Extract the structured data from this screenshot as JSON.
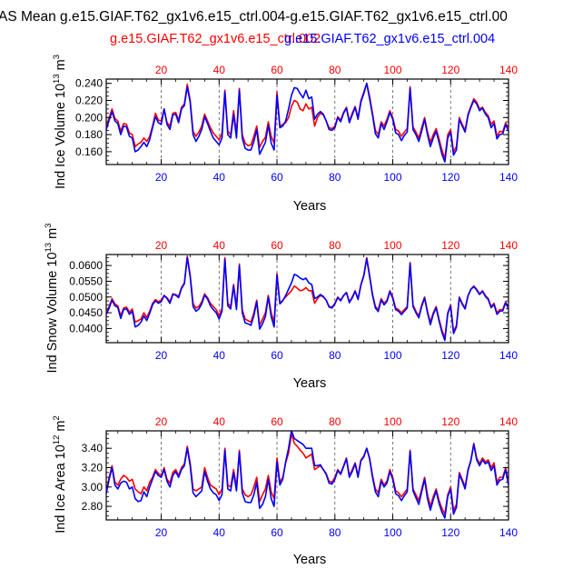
{
  "title": "AS Mean g.e15.GIAF.T62_gx1v6.e15_ctrl.004-g.e15.GIAF.T62_gx1v6.e15_ctrl.00",
  "legend": {
    "series1": "g.e15.GIAF.T62_gx1v6.e15_ctrl.002",
    "series2": "g.e15.GIAF.T62_gx1v6.e15_ctrl.004"
  },
  "colors": {
    "series1": "#ff0000",
    "series2": "#0000ff",
    "grid": "#555555"
  },
  "chart_data": [
    {
      "type": "line",
      "ylabel_text": "Ind Ice Volume 10",
      "ylabel_exp": "13",
      "ylabel_unit": "m",
      "ylabel_unit_exp": "3",
      "xlabel": "Years",
      "xlim": [
        1,
        140
      ],
      "ylim": [
        0.145,
        0.245
      ],
      "yticks": [
        "0.160",
        "0.180",
        "0.200",
        "0.220",
        "0.240"
      ],
      "xticks": [
        "20",
        "40",
        "60",
        "80",
        "100",
        "120",
        "140"
      ],
      "series": [
        {
          "name": "g.e15.GIAF.T62_gx1v6.e15_ctrl.002",
          "color": "#ff0000",
          "values": [
            0.188,
            0.2,
            0.21,
            0.199,
            0.196,
            0.184,
            0.193,
            0.192,
            0.182,
            0.18,
            0.166,
            0.169,
            0.171,
            0.176,
            0.172,
            0.178,
            0.19,
            0.205,
            0.197,
            0.196,
            0.21,
            0.194,
            0.19,
            0.205,
            0.206,
            0.197,
            0.212,
            0.216,
            0.239,
            0.22,
            0.184,
            0.178,
            0.183,
            0.19,
            0.204,
            0.196,
            0.188,
            0.182,
            0.178,
            0.174,
            0.182,
            0.232,
            0.184,
            0.18,
            0.208,
            0.182,
            0.234,
            0.18,
            0.17,
            0.167,
            0.168,
            0.178,
            0.19,
            0.165,
            0.172,
            0.177,
            0.195,
            0.178,
            0.17,
            0.23,
            0.19,
            0.192,
            0.194,
            0.2,
            0.213,
            0.22,
            0.218,
            0.21,
            0.208,
            0.216,
            0.21,
            0.212,
            0.19,
            0.2,
            0.205,
            0.203,
            0.196,
            0.188,
            0.187,
            0.19,
            0.201,
            0.197,
            0.206,
            0.212,
            0.196,
            0.205,
            0.213,
            0.2,
            0.22,
            0.23,
            0.24,
            0.225,
            0.205,
            0.185,
            0.18,
            0.195,
            0.19,
            0.198,
            0.208,
            0.2,
            0.186,
            0.184,
            0.178,
            0.183,
            0.187,
            0.236,
            0.189,
            0.183,
            0.176,
            0.188,
            0.2,
            0.183,
            0.171,
            0.18,
            0.187,
            0.175,
            0.162,
            0.152,
            0.18,
            0.186,
            0.16,
            0.166,
            0.2,
            0.192,
            0.185,
            0.204,
            0.213,
            0.222,
            0.218,
            0.21,
            0.212,
            0.206,
            0.202,
            0.192,
            0.196,
            0.178,
            0.184,
            0.183,
            0.194,
            0.186
          ]
        },
        {
          "name": "g.e15.GIAF.T62_gx1v6.e15_ctrl.004",
          "color": "#0000ff",
          "values": [
            0.186,
            0.197,
            0.207,
            0.196,
            0.193,
            0.18,
            0.19,
            0.189,
            0.178,
            0.176,
            0.16,
            0.162,
            0.166,
            0.171,
            0.166,
            0.174,
            0.188,
            0.201,
            0.194,
            0.192,
            0.21,
            0.192,
            0.186,
            0.203,
            0.204,
            0.194,
            0.21,
            0.214,
            0.236,
            0.218,
            0.18,
            0.172,
            0.178,
            0.186,
            0.201,
            0.193,
            0.184,
            0.176,
            0.172,
            0.168,
            0.176,
            0.23,
            0.18,
            0.176,
            0.204,
            0.176,
            0.232,
            0.176,
            0.164,
            0.162,
            0.162,
            0.172,
            0.186,
            0.157,
            0.164,
            0.171,
            0.191,
            0.17,
            0.162,
            0.226,
            0.188,
            0.19,
            0.196,
            0.21,
            0.226,
            0.235,
            0.234,
            0.228,
            0.223,
            0.232,
            0.222,
            0.224,
            0.198,
            0.204,
            0.207,
            0.204,
            0.196,
            0.186,
            0.185,
            0.188,
            0.2,
            0.195,
            0.205,
            0.211,
            0.194,
            0.203,
            0.212,
            0.198,
            0.218,
            0.228,
            0.24,
            0.222,
            0.203,
            0.181,
            0.176,
            0.193,
            0.186,
            0.195,
            0.206,
            0.198,
            0.182,
            0.18,
            0.173,
            0.179,
            0.183,
            0.234,
            0.186,
            0.18,
            0.172,
            0.184,
            0.198,
            0.18,
            0.166,
            0.176,
            0.184,
            0.171,
            0.157,
            0.148,
            0.176,
            0.183,
            0.156,
            0.162,
            0.198,
            0.19,
            0.183,
            0.202,
            0.212,
            0.22,
            0.216,
            0.208,
            0.211,
            0.204,
            0.2,
            0.188,
            0.193,
            0.175,
            0.18,
            0.181,
            0.192,
            0.184
          ]
        }
      ]
    },
    {
      "type": "line",
      "ylabel_text": "Ind Snow Volume 10",
      "ylabel_exp": "13",
      "ylabel_unit": "m",
      "ylabel_unit_exp": "3",
      "xlabel": "Years",
      "xlim": [
        1,
        140
      ],
      "ylim": [
        0.0355,
        0.0635
      ],
      "yticks": [
        "0.0400",
        "0.0450",
        "0.0500",
        "0.0550",
        "0.0600"
      ],
      "xticks": [
        "20",
        "40",
        "60",
        "80",
        "100",
        "120",
        "140"
      ],
      "series": [
        {
          "name": "g.e15.GIAF.T62_gx1v6.e15_ctrl.002",
          "color": "#ff0000",
          "values": [
            0.045,
            0.047,
            0.0495,
            0.0478,
            0.0472,
            0.044,
            0.0465,
            0.0468,
            0.0452,
            0.0462,
            0.042,
            0.0425,
            0.043,
            0.045,
            0.0435,
            0.0455,
            0.048,
            0.0492,
            0.0485,
            0.049,
            0.0505,
            0.0498,
            0.0485,
            0.051,
            0.0508,
            0.0502,
            0.053,
            0.0545,
            0.063,
            0.057,
            0.048,
            0.0465,
            0.047,
            0.0485,
            0.051,
            0.0498,
            0.048,
            0.047,
            0.046,
            0.044,
            0.0465,
            0.0625,
            0.048,
            0.047,
            0.054,
            0.047,
            0.0605,
            0.046,
            0.043,
            0.0425,
            0.042,
            0.045,
            0.049,
            0.041,
            0.043,
            0.045,
            0.0505,
            0.045,
            0.042,
            0.0575,
            0.048,
            0.049,
            0.05,
            0.051,
            0.052,
            0.0535,
            0.0528,
            0.052,
            0.0522,
            0.053,
            0.052,
            0.052,
            0.048,
            0.0495,
            0.0505,
            0.05,
            0.049,
            0.047,
            0.0468,
            0.048,
            0.05,
            0.049,
            0.0505,
            0.0515,
            0.0485,
            0.05,
            0.052,
            0.0495,
            0.054,
            0.057,
            0.0625,
            0.057,
            0.051,
            0.047,
            0.046,
            0.0495,
            0.048,
            0.049,
            0.052,
            0.05,
            0.0465,
            0.046,
            0.045,
            0.046,
            0.047,
            0.061,
            0.0475,
            0.0455,
            0.044,
            0.0475,
            0.05,
            0.0455,
            0.042,
            0.045,
            0.047,
            0.043,
            0.0395,
            0.037,
            0.045,
            0.0475,
            0.039,
            0.041,
            0.05,
            0.048,
            0.0465,
            0.0505,
            0.0525,
            0.0535,
            0.0525,
            0.051,
            0.052,
            0.0505,
            0.0495,
            0.047,
            0.048,
            0.045,
            0.046,
            0.046,
            0.0485,
            0.0465
          ]
        },
        {
          "name": "g.e15.GIAF.T62_gx1v6.e15_ctrl.004",
          "color": "#0000ff",
          "values": [
            0.0445,
            0.0465,
            0.049,
            0.0472,
            0.0467,
            0.0432,
            0.046,
            0.0463,
            0.0445,
            0.0455,
            0.0405,
            0.041,
            0.042,
            0.044,
            0.0425,
            0.0448,
            0.0475,
            0.0488,
            0.048,
            0.0485,
            0.0505,
            0.0495,
            0.048,
            0.0508,
            0.0506,
            0.0498,
            0.0527,
            0.0542,
            0.0625,
            0.0565,
            0.047,
            0.0455,
            0.0462,
            0.0478,
            0.0506,
            0.0494,
            0.0472,
            0.046,
            0.045,
            0.043,
            0.0455,
            0.062,
            0.0472,
            0.0462,
            0.0535,
            0.046,
            0.06,
            0.045,
            0.0418,
            0.0415,
            0.041,
            0.044,
            0.0485,
            0.0398,
            0.0415,
            0.0438,
            0.05,
            0.0438,
            0.0405,
            0.057,
            0.0478,
            0.0488,
            0.0505,
            0.0525,
            0.0545,
            0.0572,
            0.0568,
            0.056,
            0.0555,
            0.056,
            0.0545,
            0.054,
            0.0495,
            0.05,
            0.0508,
            0.0502,
            0.049,
            0.0468,
            0.0465,
            0.0478,
            0.0498,
            0.0488,
            0.0504,
            0.0514,
            0.0482,
            0.0497,
            0.0518,
            0.0492,
            0.0537,
            0.0567,
            0.0622,
            0.0565,
            0.0506,
            0.0465,
            0.0454,
            0.0491,
            0.0475,
            0.0486,
            0.0517,
            0.0496,
            0.046,
            0.0455,
            0.0444,
            0.0455,
            0.0465,
            0.0606,
            0.047,
            0.045,
            0.0434,
            0.047,
            0.0497,
            0.045,
            0.0412,
            0.0445,
            0.0466,
            0.0424,
            0.0388,
            0.0362,
            0.0446,
            0.0472,
            0.0384,
            0.0405,
            0.0498,
            0.0477,
            0.0462,
            0.0503,
            0.0524,
            0.0533,
            0.0522,
            0.0508,
            0.0518,
            0.0502,
            0.0492,
            0.0466,
            0.0476,
            0.0445,
            0.0455,
            0.0456,
            0.0482,
            0.0462
          ]
        }
      ]
    },
    {
      "type": "line",
      "ylabel_text": "Ind Ice Area 10",
      "ylabel_exp": "12",
      "ylabel_unit": "m",
      "ylabel_unit_exp": "2",
      "xlabel": "Years",
      "xlim": [
        1,
        140
      ],
      "ylim": [
        2.66,
        3.58
      ],
      "yticks": [
        "2.80",
        "3.00",
        "3.20",
        "3.40"
      ],
      "xticks": [
        "20",
        "40",
        "60",
        "80",
        "100",
        "120",
        "140"
      ],
      "series": [
        {
          "name": "g.e15.GIAF.T62_gx1v6.e15_ctrl.002",
          "color": "#ff0000",
          "values": [
            2.95,
            3.1,
            3.22,
            3.05,
            3.02,
            3.08,
            3.12,
            3.1,
            3.06,
            3.08,
            2.98,
            2.95,
            2.93,
            3.0,
            2.96,
            3.05,
            3.1,
            3.18,
            3.14,
            3.12,
            3.2,
            3.08,
            3.04,
            3.15,
            3.18,
            3.12,
            3.2,
            3.24,
            3.42,
            3.25,
            2.98,
            2.96,
            2.98,
            3.0,
            3.2,
            3.1,
            3.02,
            3.0,
            2.98,
            2.92,
            2.98,
            3.4,
            3.02,
            3.0,
            3.18,
            3.0,
            3.38,
            2.98,
            2.92,
            2.9,
            2.92,
            3.0,
            3.1,
            2.85,
            2.92,
            2.98,
            3.12,
            2.95,
            2.88,
            3.3,
            3.05,
            3.1,
            3.25,
            3.35,
            3.55,
            3.45,
            3.42,
            3.38,
            3.35,
            3.3,
            3.32,
            3.34,
            3.18,
            3.2,
            3.22,
            3.18,
            3.14,
            3.06,
            3.05,
            3.1,
            3.18,
            3.14,
            3.22,
            3.3,
            3.12,
            3.18,
            3.25,
            3.12,
            3.28,
            3.32,
            3.4,
            3.3,
            3.12,
            2.98,
            2.94,
            3.08,
            3.02,
            3.06,
            3.18,
            3.1,
            2.96,
            2.94,
            2.9,
            2.94,
            2.98,
            3.38,
            2.98,
            2.92,
            2.86,
            2.98,
            3.1,
            2.92,
            2.8,
            2.9,
            2.98,
            2.86,
            2.78,
            2.72,
            2.92,
            3.0,
            2.76,
            2.82,
            3.15,
            3.08,
            3.0,
            3.18,
            3.28,
            3.45,
            3.3,
            3.24,
            3.3,
            3.26,
            3.28,
            3.2,
            3.25,
            3.05,
            3.1,
            3.1,
            3.2,
            3.04
          ]
        },
        {
          "name": "g.e15.GIAF.T62_gx1v6.e15_ctrl.004",
          "color": "#0000ff",
          "values": [
            2.93,
            3.08,
            3.2,
            3.02,
            2.98,
            3.04,
            3.06,
            3.05,
            2.98,
            3.0,
            2.88,
            2.85,
            2.86,
            2.95,
            2.9,
            3.0,
            3.08,
            3.16,
            3.12,
            3.1,
            3.18,
            3.06,
            3.0,
            3.12,
            3.16,
            3.1,
            3.18,
            3.22,
            3.4,
            3.22,
            2.94,
            2.9,
            2.93,
            2.96,
            3.16,
            3.06,
            2.98,
            2.94,
            2.92,
            2.86,
            2.92,
            3.38,
            2.98,
            2.96,
            3.15,
            2.96,
            3.36,
            2.94,
            2.85,
            2.84,
            2.84,
            2.92,
            3.05,
            2.78,
            2.82,
            2.9,
            3.08,
            2.88,
            2.8,
            3.26,
            3.02,
            3.08,
            3.26,
            3.4,
            3.58,
            3.5,
            3.48,
            3.46,
            3.44,
            3.4,
            3.4,
            3.4,
            3.22,
            3.22,
            3.23,
            3.18,
            3.13,
            3.04,
            3.03,
            3.08,
            3.17,
            3.13,
            3.21,
            3.29,
            3.1,
            3.16,
            3.24,
            3.1,
            3.27,
            3.31,
            3.4,
            3.29,
            3.1,
            2.95,
            2.9,
            3.06,
            3.0,
            3.04,
            3.16,
            3.08,
            2.93,
            2.91,
            2.86,
            2.91,
            2.95,
            3.37,
            2.96,
            2.89,
            2.82,
            2.95,
            3.08,
            2.88,
            2.76,
            2.87,
            2.96,
            2.83,
            2.74,
            2.68,
            2.9,
            2.98,
            2.72,
            2.79,
            3.13,
            3.06,
            2.98,
            3.17,
            3.27,
            3.44,
            3.28,
            3.22,
            3.28,
            3.24,
            3.26,
            3.17,
            3.22,
            3.02,
            3.07,
            3.08,
            3.18,
            3.02
          ]
        }
      ]
    }
  ]
}
